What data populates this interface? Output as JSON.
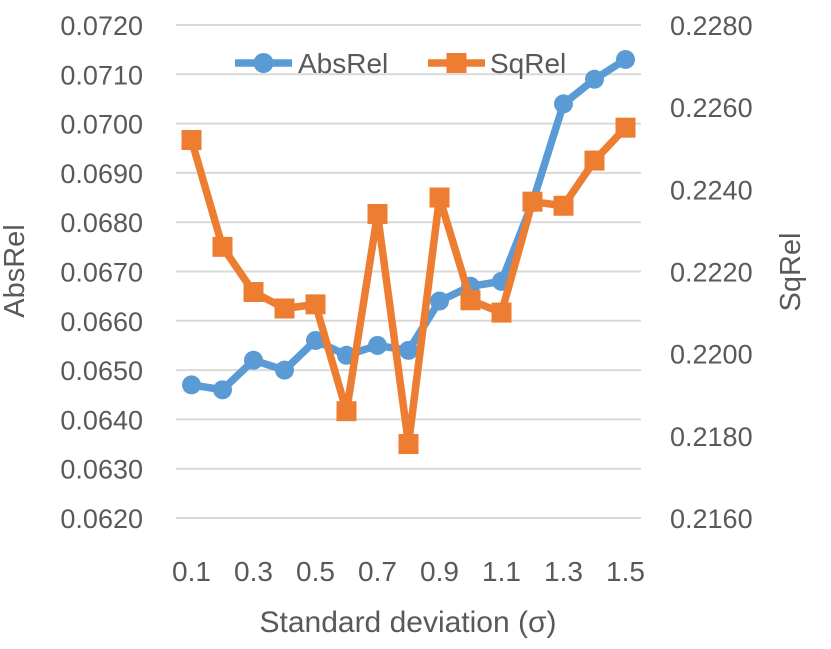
{
  "chart_data": {
    "type": "line",
    "title": "",
    "xlabel": "Standard deviation (σ)",
    "x": [
      0.1,
      0.2,
      0.3,
      0.4,
      0.5,
      0.6,
      0.7,
      0.8,
      0.9,
      1.0,
      1.1,
      1.2,
      1.3,
      1.4,
      1.5
    ],
    "x_tick_labels": [
      "0.1",
      "0.3",
      "0.5",
      "0.7",
      "0.9",
      "1.1",
      "1.3",
      "1.5"
    ],
    "series": [
      {
        "name": "AbsRel",
        "axis": "left",
        "color": "#5B9BD5",
        "marker": "circle",
        "values": [
          0.0647,
          0.0646,
          0.0652,
          0.065,
          0.0656,
          0.0653,
          0.0655,
          0.0654,
          0.0664,
          0.0667,
          0.0668,
          0.0684,
          0.0704,
          0.0709,
          0.0713
        ]
      },
      {
        "name": "SqRel",
        "axis": "right",
        "color": "#ED7D31",
        "marker": "square",
        "values": [
          0.2252,
          0.2226,
          0.2215,
          0.2211,
          0.2212,
          0.2186,
          0.2234,
          0.2178,
          0.2238,
          0.2213,
          0.221,
          0.2237,
          0.2236,
          0.2247,
          0.2255
        ]
      }
    ],
    "left_axis": {
      "title": "AbsRel",
      "min": 0.062,
      "max": 0.072,
      "step": 0.001,
      "tick_labels": [
        "0.0720",
        "0.0710",
        "0.0700",
        "0.0690",
        "0.0680",
        "0.0670",
        "0.0660",
        "0.0650",
        "0.0640",
        "0.0630",
        "0.0620"
      ]
    },
    "right_axis": {
      "title": "SqRel",
      "min": 0.216,
      "max": 0.228,
      "step": 0.002,
      "tick_labels": [
        "0.2280",
        "0.2260",
        "0.2240",
        "0.2220",
        "0.2200",
        "0.2180",
        "0.2160"
      ]
    },
    "legend": {
      "position": "top",
      "entries": [
        "AbsRel",
        "SqRel"
      ]
    },
    "grid": true,
    "colors": {
      "gridline": "#D9D9D9",
      "text": "#595959",
      "background": "#FFFFFF"
    }
  }
}
